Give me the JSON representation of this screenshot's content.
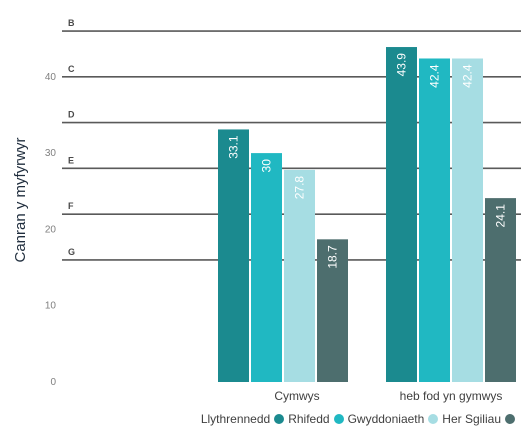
{
  "chart_data": {
    "type": "bar",
    "title": "",
    "xlabel": "",
    "ylabel": "Canran y myfyrwyr",
    "ylim": [
      0,
      47
    ],
    "yticks": [
      0,
      10,
      20,
      30,
      40
    ],
    "categories": [
      "Cymwys",
      "heb fod yn gymwys"
    ],
    "series": [
      {
        "name": "Rhifedd",
        "color": "#1b8a8f",
        "values": [
          33.1,
          43.9
        ]
      },
      {
        "name": "Gwyddoniaeth",
        "color": "#20b8c2",
        "values": [
          30,
          42.4
        ]
      },
      {
        "name": "Her Sgiliau",
        "color": "#a6dde3",
        "values": [
          27.8,
          42.4
        ]
      },
      {
        "name": "",
        "color": "#4d6e6e",
        "values": [
          18.7,
          24.1
        ]
      }
    ],
    "grade_lines": [
      {
        "label": "B",
        "value": 46
      },
      {
        "label": "C",
        "value": 40
      },
      {
        "label": "D",
        "value": 34
      },
      {
        "label": "E",
        "value": 28
      },
      {
        "label": "F",
        "value": 22
      },
      {
        "label": "G",
        "value": 16
      }
    ],
    "legend": {
      "title": "Llythrennedd",
      "position": "bottom-right"
    },
    "grid": false
  }
}
